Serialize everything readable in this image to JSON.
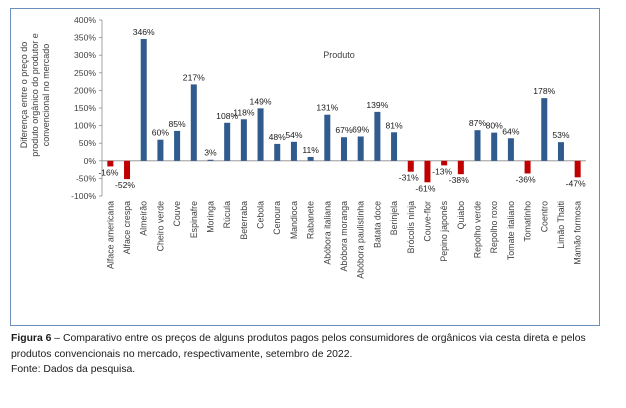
{
  "chart_data": {
    "type": "bar",
    "ylabel": "Diferença entre o preço do produto orgânico do produtor e convencional no mercado",
    "ylabel_lines": [
      "Diferença entre o preço do",
      "produto orgânico do produtor e",
      "convencional no mercado"
    ],
    "xlabel": "Produto",
    "ylim": [
      -100,
      400
    ],
    "yticks": [
      -100,
      -50,
      0,
      50,
      100,
      150,
      200,
      250,
      300,
      350,
      400
    ],
    "ytick_labels": [
      "-100%",
      "-50%",
      "0%",
      "50%",
      "100%",
      "150%",
      "200%",
      "250%",
      "300%",
      "350%",
      "400%"
    ],
    "positive_color": "#2f5b8e",
    "negative_color": "#c00000",
    "grid": false,
    "categories": [
      "Alface americana",
      "Alface crespa",
      "Almeirão",
      "Cheiro verde",
      "Couve",
      "Espinafre",
      "Moringa",
      "Rúcula",
      "Beterraba",
      "Cebola",
      "Cenoura",
      "Mandioca",
      "Rabanete",
      "Abóbora italiana",
      "Abóbora moranga",
      "Abóbora paulistinha",
      "Batata doce",
      "Berinjela",
      "Brócolis ninja",
      "Couve-flor",
      "Pepino japonês",
      "Quiabo",
      "Repolho verde",
      "Repolho roxo",
      "Tomate italiano",
      "Tomatinho",
      "Coentro",
      "Limão Thaiti",
      "Mamão formosa"
    ],
    "values": [
      -16,
      -52,
      346,
      60,
      85,
      217,
      3,
      108,
      118,
      149,
      48,
      54,
      11,
      131,
      67,
      69,
      139,
      81,
      -31,
      -61,
      -13,
      -38,
      87,
      80,
      64,
      -36,
      178,
      53,
      -47
    ],
    "data_labels": [
      "-16%",
      "-52%",
      "346%",
      "60%",
      "85%",
      "217%",
      "3%",
      "108%",
      "118%",
      "149%",
      "48%",
      "54%",
      "11%",
      "131%",
      "67%",
      "69%",
      "139%",
      "81%",
      "-31%",
      "-61%",
      "-13%",
      "-38%",
      "87%",
      "80%",
      "64%",
      "-36%",
      "178%",
      "53%",
      "-47%"
    ]
  },
  "caption": {
    "label": "Figura 6",
    "text": " – Comparativo entre os preços de alguns produtos pagos pelos consumidores de orgânicos via cesta direta e pelos produtos convencionais no mercado, respectivamente, setembro de 2022."
  },
  "source": "Fonte: Dados da pesquisa."
}
